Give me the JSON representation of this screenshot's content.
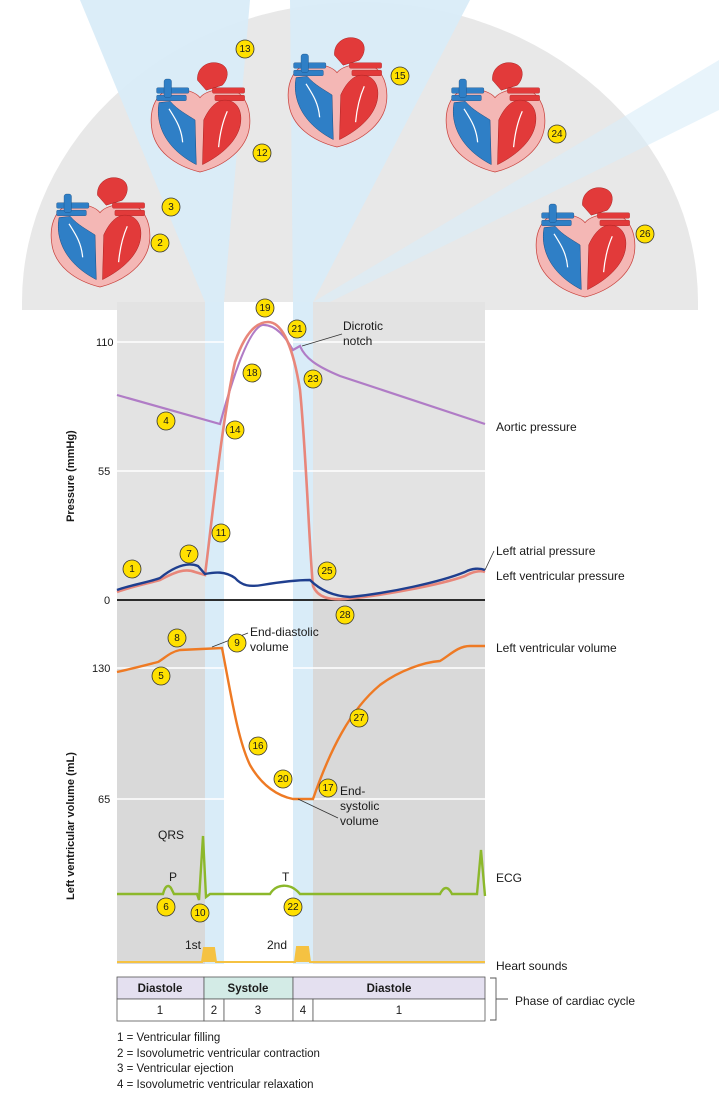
{
  "axes": {
    "pressure_title": "Pressure (mmHg)",
    "volume_title": "Left ventricular volume (mL)",
    "pressure_ticks": [
      "110",
      "55",
      "0"
    ],
    "volume_ticks": [
      "130",
      "65"
    ]
  },
  "labels": {
    "dicrotic_notch": [
      "Dicrotic",
      "notch"
    ],
    "end_diastolic": [
      "End-diastolic",
      "volume"
    ],
    "end_systolic": [
      "End-",
      "systolic",
      "volume"
    ],
    "qrs": "QRS",
    "p": "P",
    "t": "T",
    "first_sound": "1st",
    "second_sound": "2nd"
  },
  "trace_labels": {
    "aortic": "Aortic pressure",
    "left_atrial": "Left atrial pressure",
    "left_ventricular_pressure": "Left ventricular pressure",
    "left_ventricular_volume": "Left ventricular volume",
    "ecg": "ECG",
    "heart_sounds": "Heart sounds",
    "phase": "Phase of cardiac cycle"
  },
  "phase_table": {
    "headers": [
      "Diastole",
      "Systole",
      "Diastole"
    ],
    "cells": [
      "1",
      "2",
      "3",
      "4",
      "1"
    ]
  },
  "legend": [
    "1 = Ventricular filling",
    "2 = Isovolumetric ventricular contraction",
    "3 = Ventricular ejection",
    "4 = Isovolumetric ventricular relaxation"
  ],
  "markers": [
    "1",
    "2",
    "3",
    "4",
    "5",
    "6",
    "7",
    "8",
    "9",
    "10",
    "11",
    "12",
    "13",
    "14",
    "15",
    "16",
    "17",
    "18",
    "19",
    "20",
    "21",
    "22",
    "23",
    "24",
    "25",
    "26",
    "27",
    "28"
  ],
  "colors": {
    "aortic": "#b07cc6",
    "ventricular_pressure": "#e8867a",
    "atrial_pressure": "#1f3f8f",
    "volume": "#ee7a24",
    "ecg": "#8cb82b",
    "heart_sounds": "#f5c242",
    "marker_fill": "#ffe000",
    "heart_red": "#e23a3a",
    "heart_blue": "#2f7fc6"
  }
}
